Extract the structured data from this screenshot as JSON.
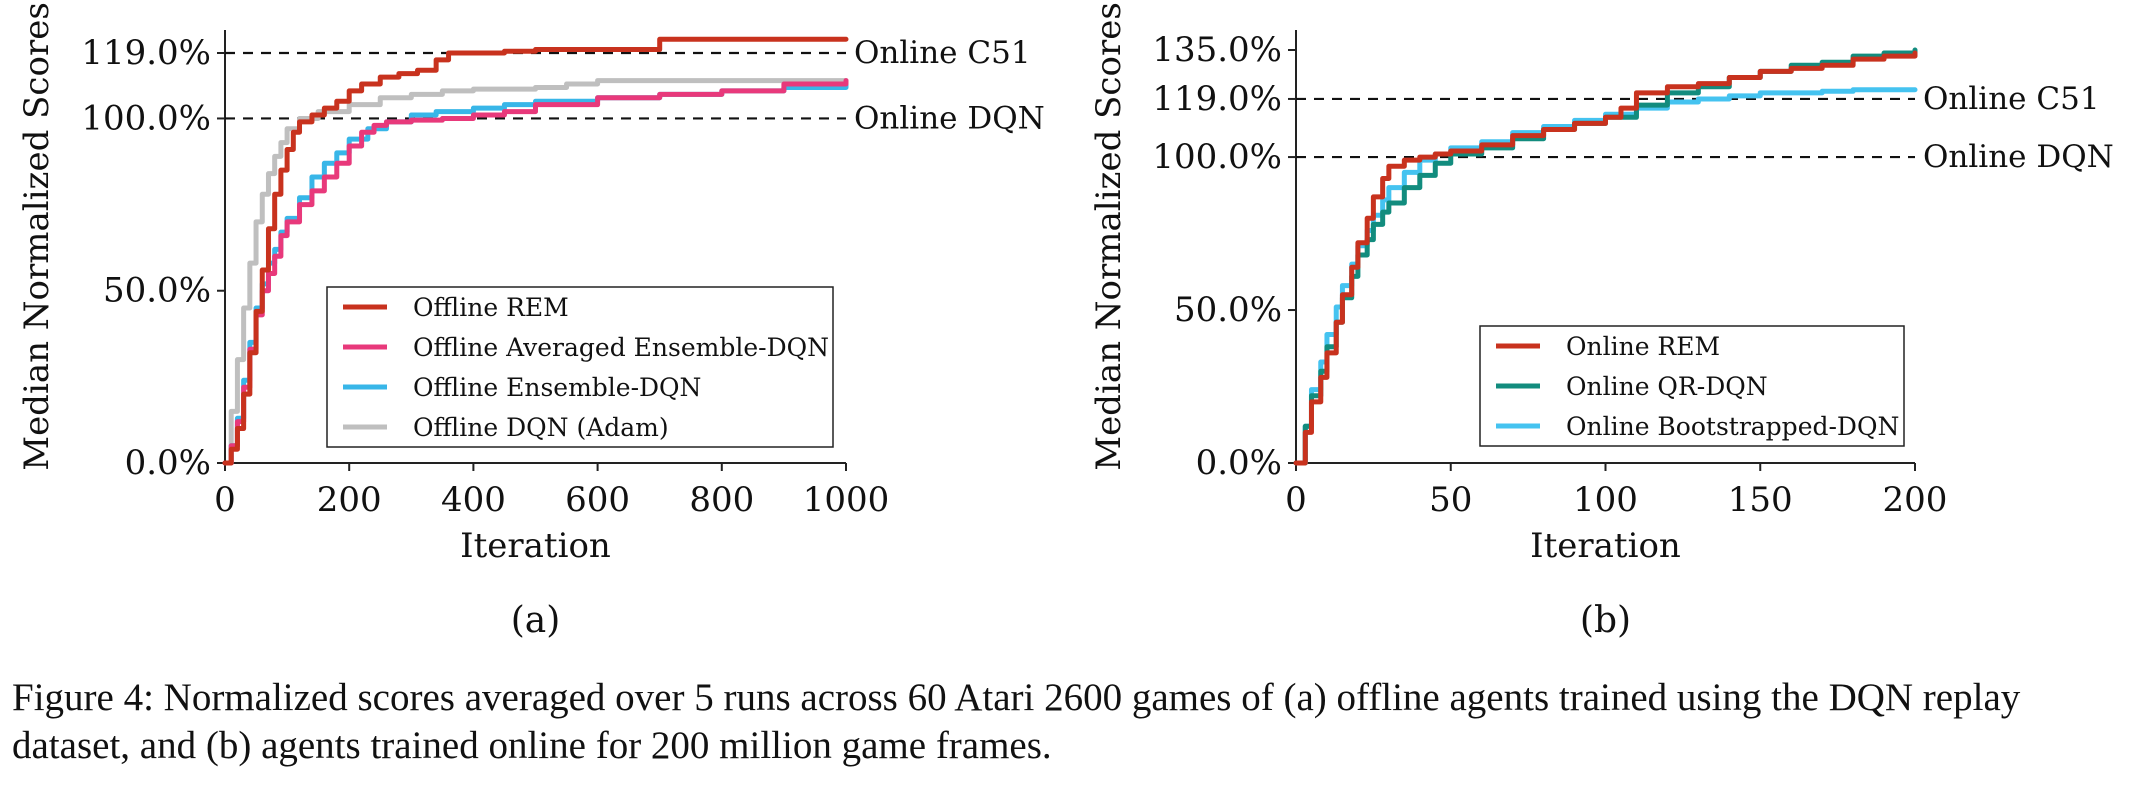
{
  "figure": {
    "caption": "Figure 4: Normalized scores averaged over 5 runs across 60 Atari 2600 games of (a) offline agents trained using the DQN replay dataset, and (b) agents trained online for 200 million game frames."
  },
  "chart_data": [
    {
      "type": "line",
      "panel_label": "(a)",
      "xlabel": "Iteration",
      "ylabel": "Median Normalized Scores",
      "xlim": [
        0,
        1000
      ],
      "ylim": [
        0,
        119
      ],
      "xticks": [
        0,
        200,
        400,
        600,
        800,
        1000
      ],
      "xtick_labels": [
        "0",
        "200",
        "400",
        "600",
        "800",
        "1000"
      ],
      "yticks": [
        0,
        50,
        100,
        119
      ],
      "ytick_labels": [
        "0.0%",
        "50.0%",
        "100.0%",
        "119.0%"
      ],
      "grid": false,
      "legend_position": "lower-right",
      "reference_lines": [
        {
          "y": 119,
          "label": "Online C51"
        },
        {
          "y": 100,
          "label": "Online DQN"
        }
      ],
      "series": [
        {
          "name": "Offline REM",
          "color": "#c8321e",
          "x": [
            0,
            10,
            20,
            30,
            40,
            50,
            60,
            70,
            80,
            90,
            100,
            110,
            120,
            140,
            160,
            180,
            200,
            220,
            250,
            280,
            310,
            340,
            360,
            400,
            450,
            500,
            550,
            600,
            650,
            690,
            700,
            750,
            800,
            850,
            900,
            950,
            1000
          ],
          "y": [
            0,
            4,
            10,
            20,
            32,
            44,
            56,
            68,
            78,
            85,
            91,
            96,
            99,
            101,
            103,
            105,
            108,
            110,
            112,
            113,
            114,
            117,
            119,
            119,
            119.5,
            120,
            120,
            120,
            120,
            120,
            123,
            123,
            123,
            123,
            123,
            123,
            123
          ]
        },
        {
          "name": "Offline Averaged Ensemble-DQN",
          "color": "#e8397b",
          "x": [
            0,
            10,
            20,
            30,
            40,
            50,
            60,
            70,
            80,
            90,
            100,
            120,
            140,
            160,
            180,
            200,
            220,
            240,
            260,
            300,
            350,
            400,
            450,
            500,
            600,
            700,
            800,
            900,
            1000
          ],
          "y": [
            0,
            5,
            12,
            22,
            33,
            43,
            50,
            55,
            60,
            66,
            70,
            75,
            79,
            83,
            87,
            92,
            96,
            98,
            99,
            99.5,
            100,
            101,
            102,
            104,
            106,
            107,
            108,
            110,
            111
          ]
        },
        {
          "name": "Offline Ensemble-DQN",
          "color": "#38b6e8",
          "x": [
            0,
            10,
            20,
            30,
            40,
            50,
            60,
            70,
            80,
            90,
            100,
            120,
            140,
            160,
            180,
            200,
            230,
            260,
            300,
            340,
            400,
            450,
            500,
            600,
            700,
            800,
            900,
            1000
          ],
          "y": [
            0,
            5,
            13,
            24,
            35,
            45,
            52,
            58,
            62,
            67,
            71,
            77,
            83,
            87,
            90,
            94,
            97,
            99,
            101,
            102,
            103,
            104,
            105,
            106,
            107,
            108,
            109,
            110
          ]
        },
        {
          "name": "Offline DQN (Adam)",
          "color": "#bfbfbf",
          "x": [
            0,
            10,
            20,
            30,
            40,
            50,
            60,
            70,
            80,
            90,
            100,
            120,
            150,
            200,
            250,
            300,
            350,
            400,
            500,
            550,
            600,
            700,
            800,
            900,
            1000
          ],
          "y": [
            0,
            15,
            30,
            45,
            58,
            70,
            78,
            84,
            89,
            93,
            97,
            100,
            102,
            104,
            106,
            107,
            108,
            108.5,
            109,
            110,
            111,
            111,
            111,
            111,
            111
          ]
        }
      ]
    },
    {
      "type": "line",
      "panel_label": "(b)",
      "xlabel": "Iteration",
      "ylabel": "Median Normalized Scores",
      "xlim": [
        0,
        200
      ],
      "ylim": [
        0,
        135
      ],
      "xticks": [
        0,
        50,
        100,
        150,
        200
      ],
      "xtick_labels": [
        "0",
        "50",
        "100",
        "150",
        "200"
      ],
      "yticks": [
        0,
        50,
        100,
        119,
        135
      ],
      "ytick_labels": [
        "0.0%",
        "50.0%",
        "100.0%",
        "119.0%",
        "135.0%"
      ],
      "grid": false,
      "legend_position": "lower-right",
      "reference_lines": [
        {
          "y": 119,
          "label": "Online C51"
        },
        {
          "y": 100,
          "label": "Online DQN"
        }
      ],
      "series": [
        {
          "name": "Online REM",
          "color": "#c8321e",
          "x": [
            0,
            3,
            5,
            8,
            10,
            13,
            15,
            18,
            20,
            23,
            25,
            28,
            30,
            35,
            40,
            45,
            50,
            60,
            70,
            80,
            90,
            100,
            105,
            110,
            120,
            130,
            140,
            150,
            160,
            170,
            180,
            190,
            200
          ],
          "y": [
            0,
            10,
            20,
            28,
            36,
            46,
            55,
            64,
            72,
            80,
            87,
            93,
            97,
            99,
            100,
            101,
            102,
            104,
            107,
            109,
            111,
            113,
            116,
            121,
            123,
            124,
            126,
            128,
            129,
            130,
            132,
            133,
            134
          ]
        },
        {
          "name": "Online QR-DQN",
          "color": "#128c7e",
          "x": [
            0,
            3,
            5,
            8,
            10,
            13,
            15,
            18,
            20,
            23,
            25,
            28,
            30,
            35,
            40,
            45,
            50,
            60,
            70,
            80,
            90,
            100,
            110,
            120,
            130,
            140,
            150,
            160,
            170,
            180,
            190,
            200
          ],
          "y": [
            0,
            12,
            22,
            30,
            38,
            46,
            54,
            61,
            68,
            73,
            78,
            82,
            85,
            90,
            94,
            98,
            101,
            103,
            106,
            109,
            111,
            113,
            117,
            121,
            123,
            126,
            128,
            130,
            131,
            133,
            134,
            135
          ]
        },
        {
          "name": "Online Bootstrapped-DQN",
          "color": "#45c3f0",
          "x": [
            0,
            3,
            5,
            8,
            10,
            13,
            15,
            18,
            20,
            23,
            25,
            28,
            30,
            35,
            40,
            45,
            50,
            60,
            70,
            80,
            90,
            100,
            110,
            120,
            130,
            140,
            150,
            160,
            170,
            180,
            190,
            200
          ],
          "y": [
            0,
            12,
            24,
            33,
            42,
            51,
            58,
            65,
            71,
            76,
            81,
            86,
            90,
            95,
            99,
            101,
            103,
            105,
            108,
            110,
            112,
            114,
            116,
            118,
            119,
            120,
            121,
            121,
            121.5,
            122,
            122,
            122
          ]
        }
      ]
    }
  ]
}
